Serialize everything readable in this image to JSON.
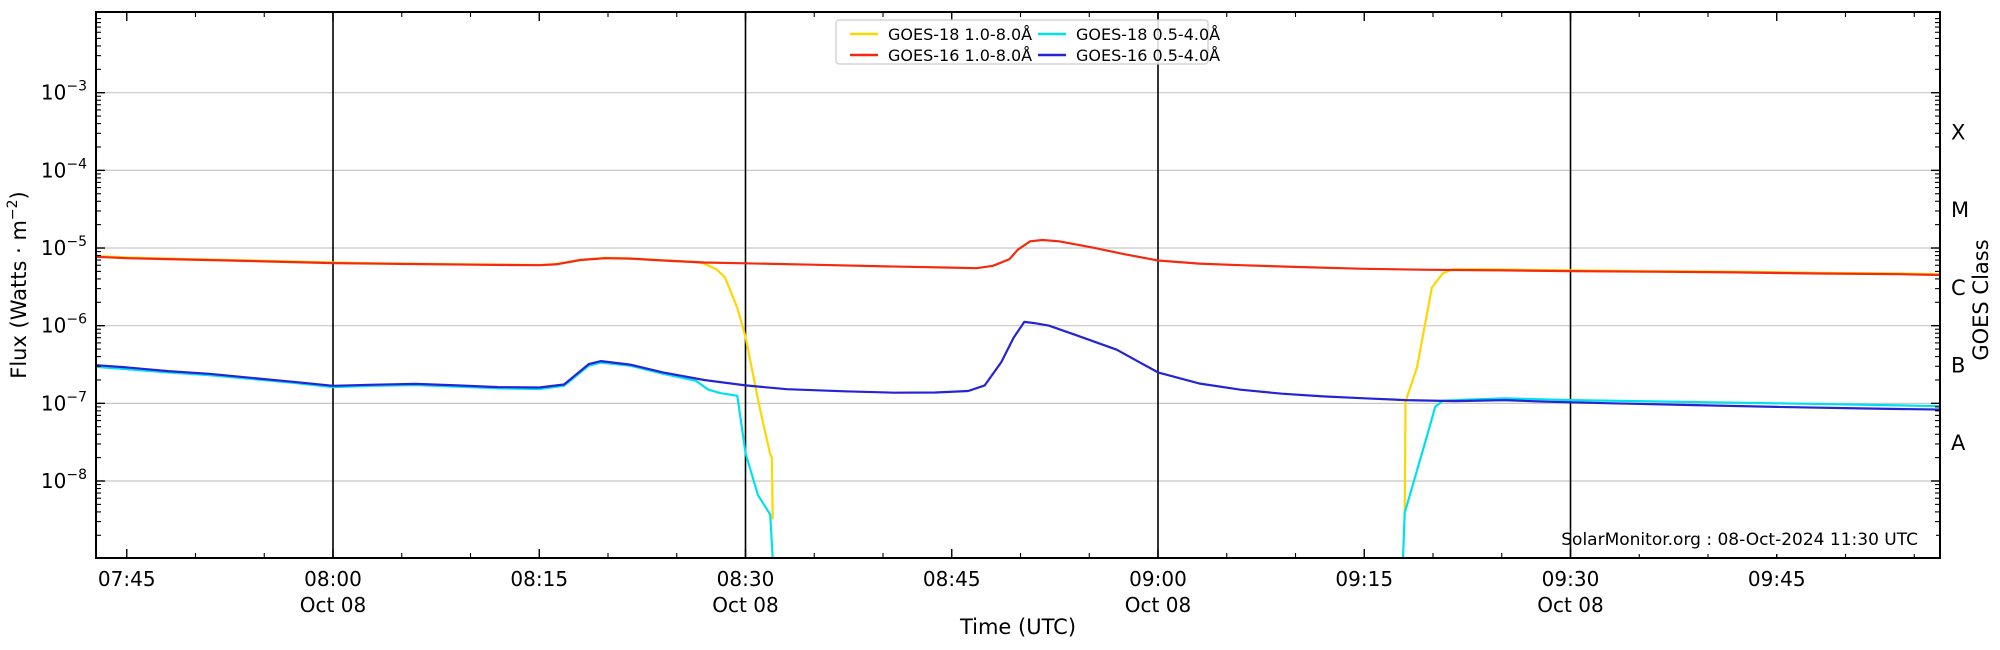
{
  "watermark": "SolarMonitor.org : 08-Oct-2024 11:30 UTC",
  "chart_data": {
    "type": "line",
    "title": "",
    "xlabel": "Time (UTC)",
    "ylabel": {
      "prefix": "Flux (Watts · m",
      "sup": "−2",
      "suffix": ")"
    },
    "ylabel_right": "GOES Class",
    "x_range_hours": [
      7.713,
      9.949
    ],
    "ylim": [
      1e-09,
      0.011
    ],
    "y_scale": "log",
    "grid": "horizontal-decades",
    "grid_color": "#c8c8c8",
    "frame_color": "#000000",
    "x_ticks": [
      {
        "t": 7.75,
        "label": "07:45",
        "date": ""
      },
      {
        "t": 8.0,
        "label": "08:00",
        "date": "Oct 08"
      },
      {
        "t": 8.25,
        "label": "08:15",
        "date": ""
      },
      {
        "t": 8.5,
        "label": "08:30",
        "date": "Oct 08"
      },
      {
        "t": 8.75,
        "label": "08:45",
        "date": ""
      },
      {
        "t": 9.0,
        "label": "09:00",
        "date": "Oct 08"
      },
      {
        "t": 9.25,
        "label": "09:15",
        "date": ""
      },
      {
        "t": 9.5,
        "label": "09:30",
        "date": "Oct 08"
      },
      {
        "t": 9.75,
        "label": "09:45",
        "date": ""
      }
    ],
    "x_minor_step_minutes": 5,
    "y_ticks": [
      {
        "exp": -3,
        "base": "10",
        "sup": "−3"
      },
      {
        "exp": -4,
        "base": "10",
        "sup": "−4"
      },
      {
        "exp": -5,
        "base": "10",
        "sup": "−5"
      },
      {
        "exp": -6,
        "base": "10",
        "sup": "−6"
      },
      {
        "exp": -7,
        "base": "10",
        "sup": "−7"
      },
      {
        "exp": -8,
        "base": "10",
        "sup": "−8"
      }
    ],
    "gridline_exps": [
      -3,
      -4,
      -5,
      -6,
      -7,
      -8
    ],
    "date_lines_hours": [
      8.0,
      8.5,
      9.0,
      9.5
    ],
    "goes_classes": [
      {
        "label": "X",
        "mid_exp": -3.5
      },
      {
        "label": "M",
        "mid_exp": -4.5
      },
      {
        "label": "C",
        "mid_exp": -5.5
      },
      {
        "label": "B",
        "mid_exp": -6.5
      },
      {
        "label": "A",
        "mid_exp": -7.5
      }
    ],
    "legend": {
      "position": "top-center",
      "border_color": "#cccccc"
    },
    "series": [
      {
        "name": "GOES-18 1.0-8.0Å",
        "slug": "goes18-long",
        "color": "#ffd700",
        "segments": [
          [
            [
              7.713,
              7.9e-06
            ],
            [
              7.75,
              7.55e-06
            ],
            [
              7.8,
              7.3e-06
            ],
            [
              7.9,
              6.9e-06
            ],
            [
              8.0,
              6.5e-06
            ],
            [
              8.08,
              6.3e-06
            ],
            [
              8.17,
              6.15e-06
            ],
            [
              8.25,
              6.05e-06
            ],
            [
              8.27,
              6.2e-06
            ],
            [
              8.3,
              7.05e-06
            ],
            [
              8.33,
              7.45e-06
            ],
            [
              8.36,
              7.35e-06
            ],
            [
              8.4,
              6.95e-06
            ],
            [
              8.44,
              6.6e-06
            ],
            [
              8.45,
              6.3e-06
            ],
            [
              8.465,
              5.3e-06
            ],
            [
              8.475,
              4.2e-06
            ],
            [
              8.49,
              1.7e-06
            ],
            [
              8.5,
              7.2e-07
            ],
            [
              8.517,
              9e-08
            ],
            [
              8.53,
              2.2e-08
            ],
            [
              8.532,
              2e-08
            ],
            [
              8.533,
              3.3e-09
            ]
          ],
          [
            [
              9.299,
              3.9e-09
            ],
            [
              9.3,
              1.05e-07
            ],
            [
              9.314,
              2.9e-07
            ],
            [
              9.332,
              3.1e-06
            ],
            [
              9.345,
              4.7e-06
            ],
            [
              9.357,
              5.3e-06
            ],
            [
              9.4,
              5.3e-06
            ],
            [
              9.5,
              5.15e-06
            ],
            [
              9.6,
              5.05e-06
            ],
            [
              9.7,
              4.95e-06
            ],
            [
              9.8,
              4.8e-06
            ],
            [
              9.9,
              4.7e-06
            ],
            [
              9.949,
              4.6e-06
            ]
          ]
        ]
      },
      {
        "name": "GOES-16 1.0-8.0Å",
        "slug": "goes16-long",
        "color": "#f4290f",
        "segments": [
          [
            [
              7.713,
              7.7e-06
            ],
            [
              7.75,
              7.4e-06
            ],
            [
              7.8,
              7.2e-06
            ],
            [
              7.9,
              6.8e-06
            ],
            [
              8.0,
              6.4e-06
            ],
            [
              8.08,
              6.25e-06
            ],
            [
              8.17,
              6.1e-06
            ],
            [
              8.25,
              6e-06
            ],
            [
              8.27,
              6.15e-06
            ],
            [
              8.3,
              7e-06
            ],
            [
              8.33,
              7.4e-06
            ],
            [
              8.36,
              7.3e-06
            ],
            [
              8.4,
              6.9e-06
            ],
            [
              8.45,
              6.5e-06
            ],
            [
              8.5,
              6.35e-06
            ],
            [
              8.58,
              6.1e-06
            ],
            [
              8.67,
              5.8e-06
            ],
            [
              8.75,
              5.6e-06
            ],
            [
              8.78,
              5.5e-06
            ],
            [
              8.8,
              5.9e-06
            ],
            [
              8.82,
              7.2e-06
            ],
            [
              8.83,
              9.5e-06
            ],
            [
              8.845,
              1.22e-05
            ],
            [
              8.86,
              1.27e-05
            ],
            [
              8.88,
              1.22e-05
            ],
            [
              8.92,
              1.02e-05
            ],
            [
              8.96,
              8.3e-06
            ],
            [
              9.0,
              6.9e-06
            ],
            [
              9.05,
              6.3e-06
            ],
            [
              9.1,
              6e-06
            ],
            [
              9.17,
              5.7e-06
            ],
            [
              9.25,
              5.4e-06
            ],
            [
              9.33,
              5.25e-06
            ],
            [
              9.42,
              5.15e-06
            ],
            [
              9.5,
              5.05e-06
            ],
            [
              9.6,
              4.95e-06
            ],
            [
              9.7,
              4.85e-06
            ],
            [
              9.8,
              4.7e-06
            ],
            [
              9.9,
              4.6e-06
            ],
            [
              9.949,
              4.5e-06
            ]
          ]
        ]
      },
      {
        "name": "GOES-18 0.5-4.0Å",
        "slug": "goes18-short",
        "color": "#00e0ee",
        "segments": [
          [
            [
              7.713,
              2.95e-07
            ],
            [
              7.75,
              2.75e-07
            ],
            [
              7.8,
              2.5e-07
            ],
            [
              7.85,
              2.3e-07
            ],
            [
              7.95,
              1.85e-07
            ],
            [
              8.0,
              1.62e-07
            ],
            [
              8.05,
              1.68e-07
            ],
            [
              8.1,
              1.72e-07
            ],
            [
              8.15,
              1.64e-07
            ],
            [
              8.2,
              1.56e-07
            ],
            [
              8.25,
              1.53e-07
            ],
            [
              8.28,
              1.68e-07
            ],
            [
              8.31,
              3.05e-07
            ],
            [
              8.325,
              3.35e-07
            ],
            [
              8.36,
              3.05e-07
            ],
            [
              8.4,
              2.4e-07
            ],
            [
              8.44,
              1.95e-07
            ],
            [
              8.455,
              1.5e-07
            ],
            [
              8.47,
              1.35e-07
            ],
            [
              8.49,
              1.25e-07
            ],
            [
              8.5,
              2.3e-08
            ],
            [
              8.515,
              6.6e-09
            ],
            [
              8.53,
              3.7e-09
            ],
            [
              8.533,
              1e-09
            ]
          ],
          [
            [
              9.297,
              1e-09
            ],
            [
              9.299,
              3.9e-09
            ],
            [
              9.324,
              3.2e-08
            ],
            [
              9.336,
              9e-08
            ],
            [
              9.345,
              1.08e-07
            ],
            [
              9.38,
              1.12e-07
            ],
            [
              9.42,
              1.16e-07
            ],
            [
              9.5,
              1.1e-07
            ],
            [
              9.58,
              1.07e-07
            ],
            [
              9.67,
              1.03e-07
            ],
            [
              9.75,
              1e-07
            ],
            [
              9.83,
              9.7e-08
            ],
            [
              9.9,
              9.4e-08
            ],
            [
              9.949,
              9.2e-08
            ]
          ]
        ]
      },
      {
        "name": "GOES-16 0.5-4.0Å",
        "slug": "goes16-short",
        "color": "#2424d4",
        "segments": [
          [
            [
              7.713,
              3.1e-07
            ],
            [
              7.75,
              2.9e-07
            ],
            [
              7.8,
              2.6e-07
            ],
            [
              7.85,
              2.4e-07
            ],
            [
              7.95,
              1.9e-07
            ],
            [
              8.0,
              1.68e-07
            ],
            [
              8.05,
              1.74e-07
            ],
            [
              8.1,
              1.78e-07
            ],
            [
              8.15,
              1.7e-07
            ],
            [
              8.2,
              1.62e-07
            ],
            [
              8.25,
              1.6e-07
            ],
            [
              8.28,
              1.75e-07
            ],
            [
              8.31,
              3.2e-07
            ],
            [
              8.325,
              3.5e-07
            ],
            [
              8.36,
              3.15e-07
            ],
            [
              8.4,
              2.5e-07
            ],
            [
              8.45,
              2e-07
            ],
            [
              8.5,
              1.7e-07
            ],
            [
              8.55,
              1.52e-07
            ],
            [
              8.62,
              1.43e-07
            ],
            [
              8.68,
              1.37e-07
            ],
            [
              8.73,
              1.38e-07
            ],
            [
              8.77,
              1.44e-07
            ],
            [
              8.79,
              1.7e-07
            ],
            [
              8.81,
              3.4e-07
            ],
            [
              8.825,
              7e-07
            ],
            [
              8.838,
              1.12e-06
            ],
            [
              8.85,
              1.08e-06
            ],
            [
              8.868,
              1e-06
            ],
            [
              8.9,
              7.6e-07
            ],
            [
              8.95,
              4.9e-07
            ],
            [
              9.0,
              2.5e-07
            ],
            [
              9.05,
              1.8e-07
            ],
            [
              9.1,
              1.5e-07
            ],
            [
              9.15,
              1.33e-07
            ],
            [
              9.2,
              1.23e-07
            ],
            [
              9.25,
              1.16e-07
            ],
            [
              9.3,
              1.1e-07
            ],
            [
              9.36,
              1.07e-07
            ],
            [
              9.42,
              1.1e-07
            ],
            [
              9.47,
              1.05e-07
            ],
            [
              9.55,
              1e-07
            ],
            [
              9.65,
              9.5e-08
            ],
            [
              9.75,
              9e-08
            ],
            [
              9.85,
              8.6e-08
            ],
            [
              9.949,
              8.3e-08
            ]
          ]
        ]
      }
    ],
    "annotations": [
      "SolarMonitor.org : 08-Oct-2024 11:30 UTC"
    ]
  }
}
